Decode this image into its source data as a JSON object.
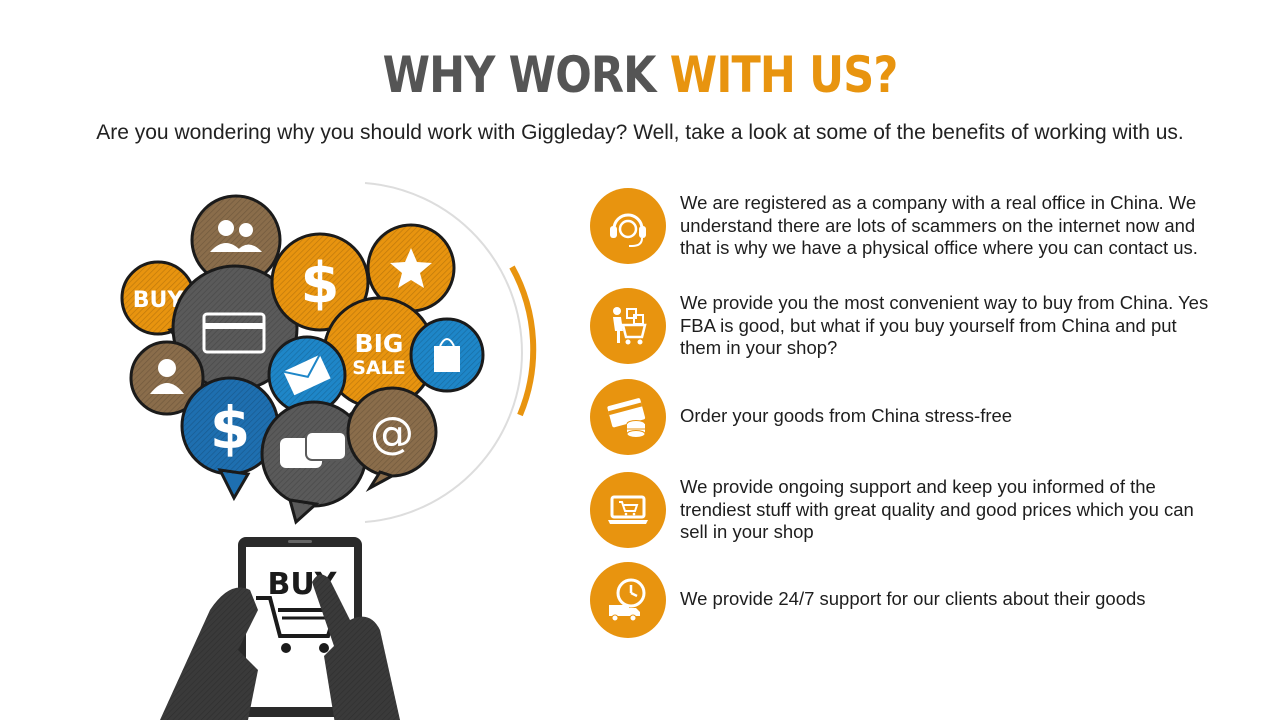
{
  "header": {
    "title_part1": "WHY WORK ",
    "title_part2": "WITH US?",
    "subtitle": "Are you wondering why you should work with Giggleday? Well, take a look at some of the benefits of working with us."
  },
  "illustration": {
    "bubbles": {
      "buy": "BUY",
      "big": "BIG",
      "sale": "SALE",
      "dollar": "$",
      "at": "@"
    },
    "tablet_label": "BUY"
  },
  "benefits": [
    {
      "icon": "headset-support-icon",
      "text": "We are registered as a company with a real office in China. We understand there are lots of scammers on the internet now and that is why we have a physical office where you can contact us."
    },
    {
      "icon": "shopping-cart-person-icon",
      "text": "We provide you the most convenient way to buy from China. Yes FBA is good, but what if you buy yourself from China and put them in your shop?"
    },
    {
      "icon": "credit-card-coins-icon",
      "text": "Order your goods from China stress-free"
    },
    {
      "icon": "laptop-cart-icon",
      "text": "We provide ongoing support and keep you informed of the trendiest stuff with great quality and good prices which you can sell in your shop"
    },
    {
      "icon": "clock-truck-icon",
      "text": "We provide 24/7 support for our clients about their goods"
    }
  ],
  "colors": {
    "accent": "#e8940f",
    "dark": "#555555",
    "brown": "#8a6d4b",
    "blue": "#1e86c8",
    "gray": "#5a5a5a"
  }
}
